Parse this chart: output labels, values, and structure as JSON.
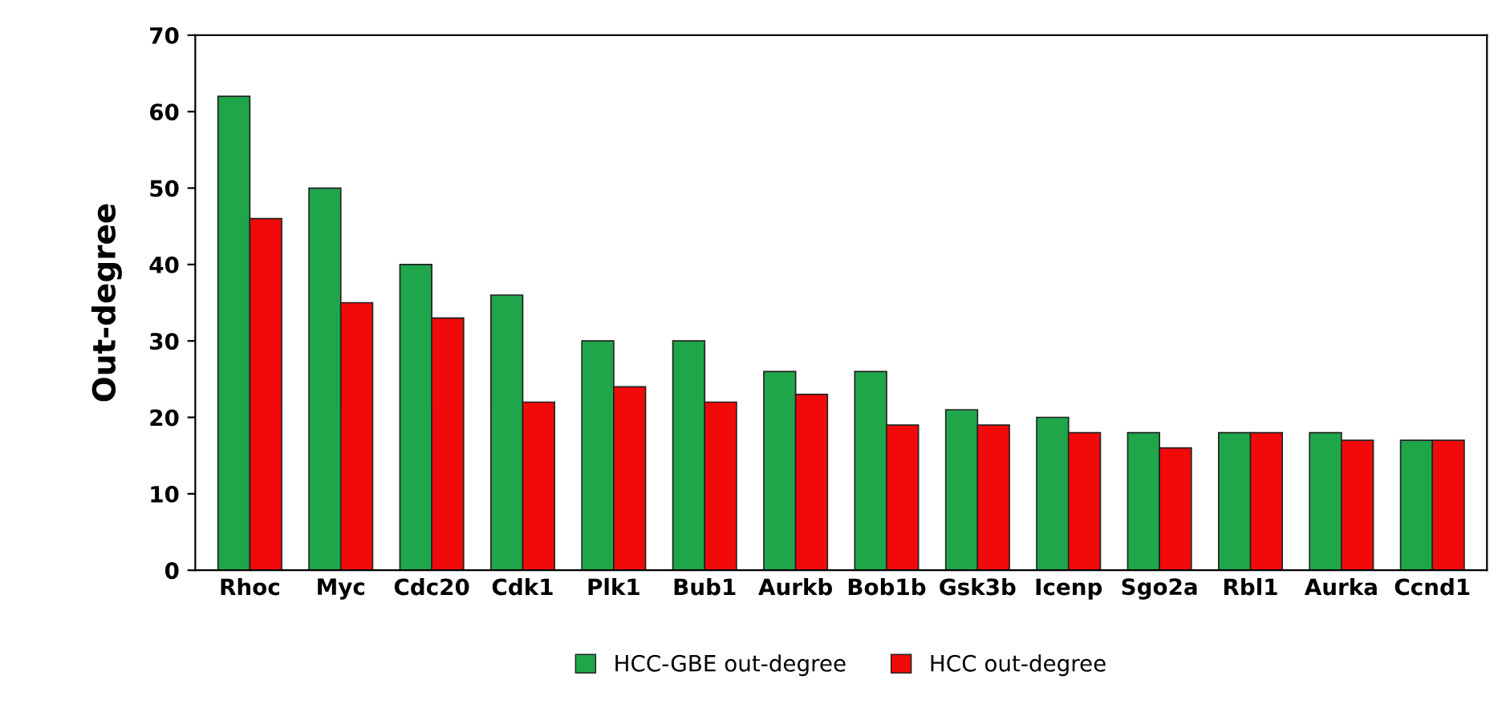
{
  "chart_data": {
    "type": "bar",
    "ylabel": "Out-degree",
    "categories": [
      "Rhoc",
      "Myc",
      "Cdc20",
      "Cdk1",
      "Plk1",
      "Bub1",
      "Aurkb",
      "Bob1b",
      "Gsk3b",
      "Icenp",
      "Sgo2a",
      "Rbl1",
      "Aurka",
      "Ccnd1"
    ],
    "series": [
      {
        "name": "HCC-GBE out-degree",
        "color": "#1fa64a",
        "values": [
          62,
          50,
          40,
          36,
          30,
          30,
          26,
          26,
          21,
          20,
          18,
          18,
          18,
          17
        ]
      },
      {
        "name": "HCC out-degree",
        "color": "#f20a0a",
        "values": [
          46,
          35,
          33,
          22,
          24,
          22,
          23,
          19,
          19,
          18,
          16,
          18,
          17,
          17
        ]
      }
    ],
    "ylim": [
      0,
      70
    ],
    "yticks": [
      0,
      10,
      20,
      30,
      40,
      50,
      60,
      70
    ],
    "grid": false,
    "legend": "bottom"
  }
}
